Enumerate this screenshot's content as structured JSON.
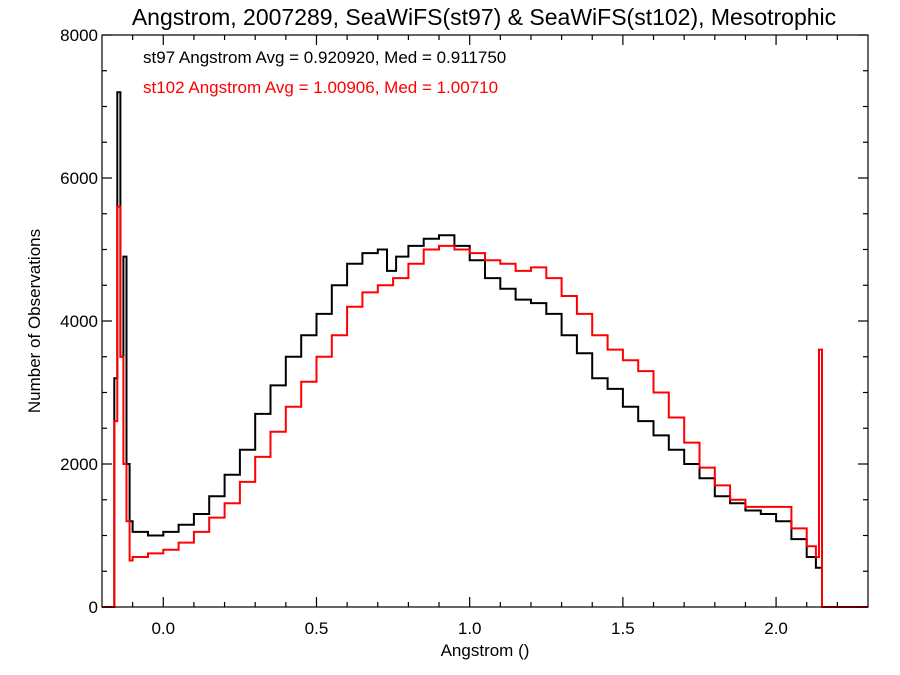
{
  "chart_data": {
    "type": "line",
    "title": "Angstrom, 2007289, SeaWiFS(st97) & SeaWiFS(st102), Mesotrophic",
    "xlabel": "Angstrom ()",
    "ylabel": "Number of Observations",
    "xlim": [
      -0.2,
      2.3
    ],
    "ylim": [
      0,
      8000
    ],
    "x_ticks": [
      "0.0",
      "0.5",
      "1.0",
      "1.5",
      "2.0"
    ],
    "x_tick_values": [
      0.0,
      0.5,
      1.0,
      1.5,
      2.0
    ],
    "y_ticks": [
      "0",
      "2000",
      "4000",
      "6000",
      "8000"
    ],
    "y_tick_values": [
      0,
      2000,
      4000,
      6000,
      8000
    ],
    "grid": false,
    "step": true,
    "annotations": [
      {
        "text": "st97 Angstrom Avg = 0.920920, Med = 0.911750",
        "color": "#000000"
      },
      {
        "text": "st102 Angstrom Avg = 1.00906, Med = 1.00710",
        "color": "#ff0000"
      }
    ],
    "series": [
      {
        "color": "#000000",
        "x": [
          -0.2,
          -0.16,
          -0.15,
          -0.14,
          -0.13,
          -0.12,
          -0.11,
          -0.1,
          -0.05,
          0.0,
          0.05,
          0.1,
          0.15,
          0.2,
          0.25,
          0.3,
          0.35,
          0.4,
          0.45,
          0.5,
          0.55,
          0.6,
          0.65,
          0.7,
          0.73,
          0.76,
          0.8,
          0.85,
          0.9,
          0.95,
          1.0,
          1.05,
          1.1,
          1.15,
          1.2,
          1.25,
          1.3,
          1.35,
          1.4,
          1.45,
          1.5,
          1.55,
          1.6,
          1.65,
          1.7,
          1.75,
          1.8,
          1.85,
          1.9,
          1.95,
          2.0,
          2.05,
          2.1,
          2.13,
          2.15,
          2.3
        ],
        "y": [
          0,
          3200,
          7200,
          3500,
          4900,
          2000,
          1200,
          1050,
          1000,
          1050,
          1150,
          1300,
          1550,
          1850,
          2200,
          2700,
          3100,
          3500,
          3800,
          4100,
          4500,
          4800,
          4950,
          5000,
          4700,
          4900,
          5050,
          5150,
          5200,
          5050,
          4850,
          4600,
          4450,
          4300,
          4250,
          4100,
          3800,
          3550,
          3200,
          3050,
          2800,
          2600,
          2400,
          2200,
          2000,
          1800,
          1550,
          1450,
          1350,
          1300,
          1200,
          950,
          700,
          550,
          0,
          0
        ]
      },
      {
        "color": "#ff0000",
        "x": [
          -0.2,
          -0.16,
          -0.15,
          -0.14,
          -0.13,
          -0.12,
          -0.11,
          -0.1,
          -0.05,
          0.0,
          0.05,
          0.1,
          0.15,
          0.2,
          0.25,
          0.3,
          0.35,
          0.4,
          0.45,
          0.5,
          0.55,
          0.6,
          0.65,
          0.7,
          0.75,
          0.8,
          0.85,
          0.9,
          0.95,
          1.0,
          1.05,
          1.1,
          1.15,
          1.2,
          1.25,
          1.3,
          1.35,
          1.4,
          1.45,
          1.5,
          1.55,
          1.6,
          1.65,
          1.7,
          1.75,
          1.8,
          1.85,
          1.9,
          1.95,
          2.0,
          2.05,
          2.1,
          2.13,
          2.14,
          2.15,
          2.3
        ],
        "y": [
          0,
          2600,
          5600,
          3500,
          2000,
          1200,
          650,
          700,
          750,
          800,
          900,
          1050,
          1250,
          1450,
          1750,
          2100,
          2450,
          2800,
          3150,
          3500,
          3800,
          4200,
          4400,
          4500,
          4600,
          4800,
          5000,
          5050,
          5000,
          4950,
          4850,
          4800,
          4700,
          4750,
          4600,
          4350,
          4100,
          3800,
          3600,
          3450,
          3300,
          3000,
          2650,
          2300,
          1950,
          1700,
          1500,
          1400,
          1400,
          1400,
          1100,
          850,
          700,
          3600,
          0,
          0
        ]
      }
    ]
  }
}
